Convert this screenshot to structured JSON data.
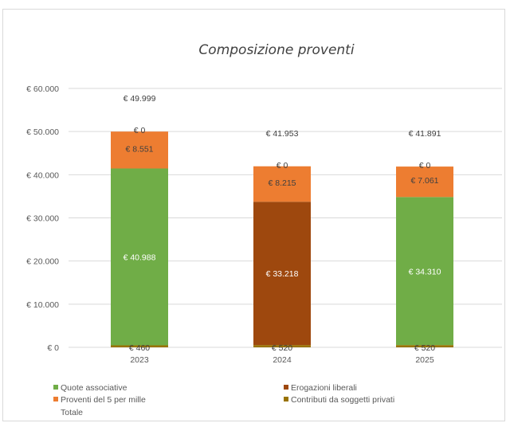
{
  "chart_data": {
    "type": "bar",
    "stacked": true,
    "title": "Composizione proventi",
    "categories": [
      "2023",
      "2024",
      "2025"
    ],
    "ylim": [
      0,
      60000
    ],
    "yticks": [
      0,
      10000,
      20000,
      30000,
      40000,
      50000,
      60000
    ],
    "ytick_labels": [
      "€ 0",
      "€ 10.000",
      "€ 20.000",
      "€ 30.000",
      "€ 40.000",
      "€ 50.000",
      "€ 60.000"
    ],
    "grid": true,
    "legend_position": "bottom",
    "series": [
      {
        "name": "Quote associative",
        "color": "#70ad47",
        "values": [
          40988,
          0,
          34310
        ],
        "labels": [
          "€ 40.988",
          "",
          "€ 34.310"
        ]
      },
      {
        "name": "Erogazioni liberali",
        "color": "#9e480e",
        "values": [
          0,
          33218,
          0
        ],
        "labels": [
          "",
          "€ 33.218",
          ""
        ]
      },
      {
        "name": "Proventi del 5 per mille",
        "color": "#ed7d31",
        "values": [
          8551,
          8215,
          7061
        ],
        "labels": [
          "€ 8.551",
          "€ 8.215",
          "€ 7.061"
        ]
      },
      {
        "name": "Contributi da soggetti privati",
        "color": "#997300",
        "values": [
          460,
          520,
          520
        ],
        "labels": [
          "€ 460",
          "€ 520",
          "€ 520"
        ]
      }
    ],
    "zero_labels": [
      "€ 0",
      "€ 0",
      "€ 0"
    ],
    "totals": {
      "name": "Totale",
      "values": [
        49999,
        41953,
        41891
      ],
      "labels": [
        "€ 49.999",
        "€ 41.953",
        "€ 41.891"
      ]
    }
  }
}
